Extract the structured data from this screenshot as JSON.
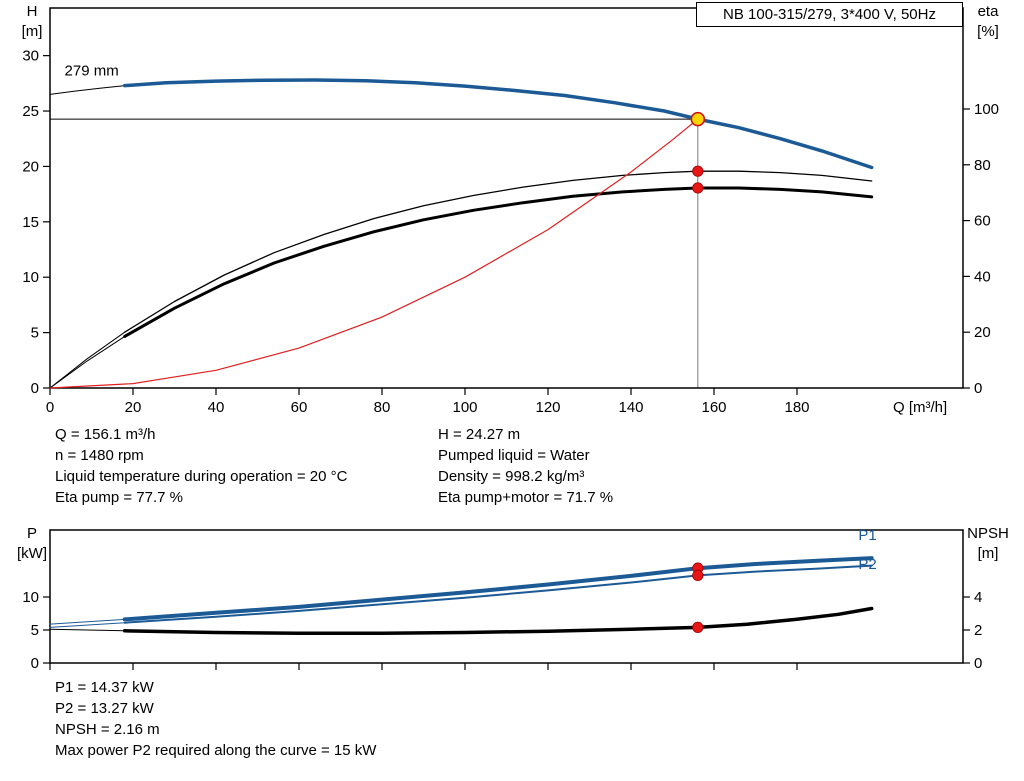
{
  "chart_data": [
    {
      "type": "line",
      "title": "NB 100-315/279, 3*400 V, 50Hz",
      "annotation": {
        "text": "279 mm",
        "q": 3.5,
        "value": 28.2
      },
      "x_axis": {
        "label": "Q [m³/h]",
        "min": 0,
        "max": 220,
        "ticks": [
          0,
          20,
          40,
          60,
          80,
          100,
          120,
          140,
          160,
          180
        ]
      },
      "left_axis": {
        "name": "H",
        "unit": "[m]",
        "min": 0,
        "max": 34.3,
        "ticks": [
          0,
          5,
          10,
          15,
          20,
          25,
          30
        ]
      },
      "right_axis": {
        "name": "eta",
        "unit": "[%]",
        "min": 0,
        "max": 136.2,
        "ticks": [
          0,
          20,
          40,
          60,
          80,
          100
        ]
      },
      "duty_point": {
        "q": 156.1,
        "h": 24.27,
        "eta_pump": 77.7,
        "eta_pump_motor": 71.7
      },
      "crosshair": {
        "q": 156.1,
        "value": 24.27
      },
      "series": [
        {
          "name": "head-curve-extension",
          "axis": "left",
          "color": "#000000",
          "width": 1,
          "points": [
            [
              0,
              26.5
            ],
            [
              6,
              26.8
            ],
            [
              12,
              27.05
            ],
            [
              18,
              27.3
            ]
          ]
        },
        {
          "name": "head-curve-279mm",
          "axis": "left",
          "color": "#1c5a96",
          "width": 3.5,
          "points": [
            [
              18,
              27.3
            ],
            [
              28,
              27.55
            ],
            [
              40,
              27.7
            ],
            [
              52,
              27.78
            ],
            [
              64,
              27.8
            ],
            [
              76,
              27.74
            ],
            [
              88,
              27.55
            ],
            [
              100,
              27.25
            ],
            [
              112,
              26.85
            ],
            [
              124,
              26.4
            ],
            [
              136,
              25.75
            ],
            [
              148,
              25.0
            ],
            [
              156.1,
              24.27
            ],
            [
              166,
              23.5
            ],
            [
              176,
              22.5
            ],
            [
              186,
              21.4
            ],
            [
              198,
              19.9
            ]
          ]
        },
        {
          "name": "eta-pump-extension",
          "axis": "right",
          "color": "#000000",
          "width": 1,
          "points": [
            [
              0,
              0
            ],
            [
              9,
              10.5
            ],
            [
              18,
              20
            ]
          ]
        },
        {
          "name": "eta-pump-curve",
          "axis": "right",
          "color": "#000000",
          "width": 1.3,
          "points": [
            [
              18,
              20
            ],
            [
              30,
              31
            ],
            [
              42,
              40.5
            ],
            [
              54,
              48.5
            ],
            [
              66,
              55
            ],
            [
              78,
              60.7
            ],
            [
              90,
              65.3
            ],
            [
              102,
              69
            ],
            [
              114,
              72
            ],
            [
              126,
              74.4
            ],
            [
              138,
              76.2
            ],
            [
              148,
              77.2
            ],
            [
              156.1,
              77.7
            ],
            [
              166,
              77.7
            ],
            [
              176,
              77.2
            ],
            [
              186,
              76.2
            ],
            [
              198,
              74.2
            ]
          ]
        },
        {
          "name": "eta-pump-motor-extension",
          "axis": "right",
          "color": "#000000",
          "width": 1,
          "points": [
            [
              0,
              0
            ],
            [
              9,
              9.7
            ],
            [
              18,
              18.5
            ]
          ]
        },
        {
          "name": "eta-pump-motor-curve",
          "axis": "right",
          "color": "#000000",
          "width": 3,
          "points": [
            [
              18,
              18.5
            ],
            [
              30,
              28.6
            ],
            [
              42,
              37.4
            ],
            [
              54,
              44.8
            ],
            [
              66,
              50.8
            ],
            [
              78,
              56
            ],
            [
              90,
              60.3
            ],
            [
              102,
              63.7
            ],
            [
              114,
              66.4
            ],
            [
              126,
              68.7
            ],
            [
              138,
              70.3
            ],
            [
              148,
              71.2
            ],
            [
              156.1,
              71.7
            ],
            [
              166,
              71.7
            ],
            [
              176,
              71.2
            ],
            [
              186,
              70.3
            ],
            [
              198,
              68.5
            ]
          ]
        },
        {
          "name": "system-curve",
          "axis": "left",
          "color": "#e02020",
          "width": 1.2,
          "points": [
            [
              0,
              0
            ],
            [
              20,
              0.4
            ],
            [
              40,
              1.6
            ],
            [
              60,
              3.6
            ],
            [
              80,
              6.4
            ],
            [
              100,
              10.0
            ],
            [
              120,
              14.3
            ],
            [
              140,
              19.5
            ],
            [
              150,
              22.4
            ],
            [
              156.1,
              24.27
            ]
          ]
        }
      ],
      "markers": [
        {
          "q": 156.1,
          "value": 24.27,
          "axis": "left",
          "type": "ring",
          "fill": "#ffd400",
          "stroke": "#cc1111"
        },
        {
          "q": 156.1,
          "value": 77.7,
          "axis": "right",
          "type": "dot",
          "fill": "#e81717",
          "stroke": "#a00000"
        },
        {
          "q": 156.1,
          "value": 71.7,
          "axis": "right",
          "type": "dot",
          "fill": "#e81717",
          "stroke": "#a00000"
        }
      ]
    },
    {
      "type": "line",
      "x_axis": {
        "min": 0,
        "max": 220,
        "ticks": [
          0,
          20,
          40,
          60,
          80,
          100,
          120,
          140,
          160,
          180
        ]
      },
      "left_axis": {
        "name": "P",
        "unit": "[kW]",
        "min": 0,
        "max": 20.15,
        "ticks": [
          0,
          5,
          10
        ]
      },
      "right_axis": {
        "name": "NPSH",
        "unit": "[m]",
        "min": 0,
        "max": 8.06,
        "ticks": [
          0,
          2,
          4
        ]
      },
      "duty_point": {
        "q": 156.1,
        "p1": 14.37,
        "p2": 13.27,
        "npsh": 2.16
      },
      "series": [
        {
          "name": "p1-curve-extension",
          "axis": "left",
          "color": "#1c5a96",
          "width": 1,
          "points": [
            [
              0,
              5.9
            ],
            [
              18,
              6.6
            ]
          ]
        },
        {
          "name": "p1-curve",
          "axis": "left",
          "color": "#1c5a96",
          "width": 4,
          "end_label": "P1",
          "label_at": [
            197,
            19.4
          ],
          "points": [
            [
              18,
              6.6
            ],
            [
              40,
              7.6
            ],
            [
              60,
              8.5
            ],
            [
              80,
              9.6
            ],
            [
              100,
              10.7
            ],
            [
              120,
              11.9
            ],
            [
              140,
              13.2
            ],
            [
              156.1,
              14.37
            ],
            [
              170,
              15.0
            ],
            [
              185,
              15.5
            ],
            [
              198,
              15.9
            ]
          ]
        },
        {
          "name": "p2-curve-extension",
          "axis": "left",
          "color": "#1c5a96",
          "width": 1,
          "points": [
            [
              0,
              5.4
            ],
            [
              18,
              6.1
            ]
          ]
        },
        {
          "name": "p2-curve",
          "axis": "left",
          "color": "#1c5a96",
          "width": 2,
          "end_label": "P2",
          "label_at": [
            197,
            15.0
          ],
          "points": [
            [
              18,
              6.1
            ],
            [
              40,
              7.0
            ],
            [
              60,
              7.9
            ],
            [
              80,
              8.9
            ],
            [
              100,
              9.9
            ],
            [
              120,
              11.0
            ],
            [
              140,
              12.2
            ],
            [
              156.1,
              13.27
            ],
            [
              170,
              13.85
            ],
            [
              185,
              14.3
            ],
            [
              198,
              14.75
            ]
          ]
        },
        {
          "name": "npsh-curve-extension",
          "axis": "right",
          "color": "#000000",
          "width": 1,
          "points": [
            [
              0,
              2.05
            ],
            [
              18,
              1.95
            ]
          ]
        },
        {
          "name": "npsh-curve",
          "axis": "right",
          "color": "#000000",
          "width": 3.5,
          "points": [
            [
              18,
              1.95
            ],
            [
              40,
              1.85
            ],
            [
              60,
              1.8
            ],
            [
              80,
              1.8
            ],
            [
              100,
              1.85
            ],
            [
              120,
              1.93
            ],
            [
              140,
              2.04
            ],
            [
              156.1,
              2.16
            ],
            [
              168,
              2.35
            ],
            [
              180,
              2.65
            ],
            [
              190,
              2.95
            ],
            [
              198,
              3.3
            ]
          ]
        }
      ],
      "markers": [
        {
          "q": 156.1,
          "value": 14.37,
          "axis": "left",
          "type": "dot",
          "fill": "#e81717",
          "stroke": "#a00000"
        },
        {
          "q": 156.1,
          "value": 13.27,
          "axis": "left",
          "type": "dot",
          "fill": "#e81717",
          "stroke": "#a00000"
        },
        {
          "q": 156.1,
          "value": 2.16,
          "axis": "right",
          "type": "dot",
          "fill": "#e81717",
          "stroke": "#a00000"
        }
      ]
    }
  ],
  "details_top": {
    "left": [
      "Q = 156.1 m³/h",
      "n = 1480 rpm",
      "Liquid temperature during operation = 20 °C",
      "Eta pump = 77.7 %"
    ],
    "right": [
      "H = 24.27 m",
      "Pumped liquid = Water",
      "Density = 998.2 kg/m³",
      "Eta pump+motor = 71.7 %"
    ]
  },
  "details_bottom": [
    "P1 = 14.37 kW",
    "P2 = 13.27 kW",
    "NPSH = 2.16 m",
    "Max power P2 required along the curve = 15 kW"
  ]
}
